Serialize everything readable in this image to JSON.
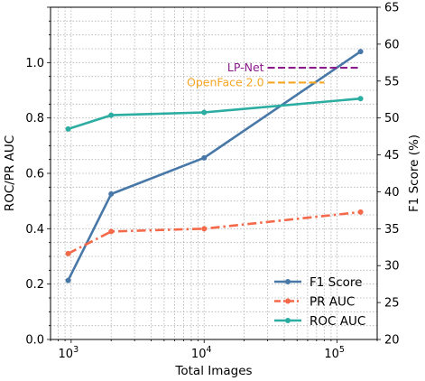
{
  "chart_data": {
    "type": "line",
    "xlabel": "Total Images",
    "ylabel_left": "ROC/PR AUC",
    "ylabel_right": "F1 Score (%)",
    "x_scale": "log",
    "xlim": [
      700,
      200000
    ],
    "ylim_left": [
      0,
      1.2
    ],
    "ylim_right": [
      20,
      65
    ],
    "x_ticks": [
      {
        "value": 1000,
        "base": "10",
        "exp": "3"
      },
      {
        "value": 10000,
        "base": "10",
        "exp": "4"
      },
      {
        "value": 100000,
        "base": "10",
        "exp": "5"
      }
    ],
    "y_ticks_left": [
      {
        "value": 0.0,
        "label": "0.0"
      },
      {
        "value": 0.2,
        "label": "0.2"
      },
      {
        "value": 0.4,
        "label": "0.4"
      },
      {
        "value": 0.6,
        "label": "0.6"
      },
      {
        "value": 0.8,
        "label": "0.8"
      },
      {
        "value": 1.0,
        "label": "1.0"
      }
    ],
    "y_ticks_right": [
      {
        "value": 20,
        "label": "20"
      },
      {
        "value": 25,
        "label": "25"
      },
      {
        "value": 30,
        "label": "30"
      },
      {
        "value": 35,
        "label": "35"
      },
      {
        "value": 40,
        "label": "40"
      },
      {
        "value": 45,
        "label": "45"
      },
      {
        "value": 50,
        "label": "50"
      },
      {
        "value": 55,
        "label": "55"
      },
      {
        "value": 60,
        "label": "60"
      },
      {
        "value": 65,
        "label": "65"
      }
    ],
    "grid": true,
    "legend_position": "lower-right",
    "series": [
      {
        "name": "F1 Score",
        "axis": "right",
        "color": "#4878a8",
        "line_style": "solid",
        "x": [
          950,
          2000,
          10000,
          150000
        ],
        "y": [
          28.0,
          39.7,
          44.6,
          59.0
        ]
      },
      {
        "name": "PR AUC",
        "axis": "left",
        "color": "#f4694a",
        "line_style": "dashdot",
        "x": [
          950,
          2000,
          10000,
          150000
        ],
        "y": [
          0.31,
          0.39,
          0.4,
          0.46
        ]
      },
      {
        "name": "ROC AUC",
        "axis": "left",
        "color": "#2bada1",
        "line_style": "solid",
        "x": [
          950,
          2000,
          10000,
          150000
        ],
        "y": [
          0.76,
          0.81,
          0.82,
          0.87
        ]
      }
    ],
    "reference_lines": [
      {
        "label": "LP-Net",
        "color": "#8b1a8b",
        "axis": "right",
        "value": 56.8,
        "x_range": [
          30000,
          150000
        ]
      },
      {
        "label": "OpenFace 2.0",
        "color": "#f5a623",
        "axis": "right",
        "value": 54.8,
        "x_range": [
          30000,
          80000
        ]
      }
    ]
  }
}
